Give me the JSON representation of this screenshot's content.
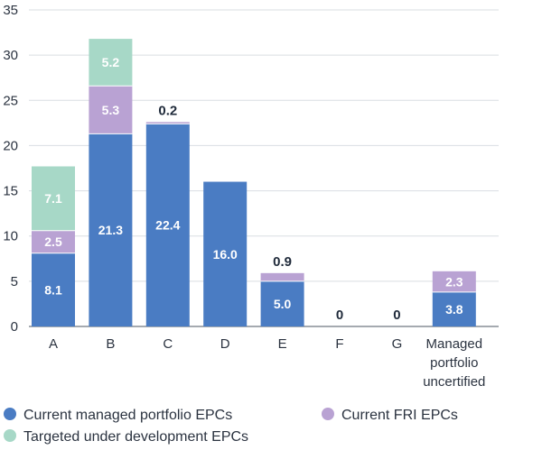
{
  "chart_data": {
    "type": "bar",
    "stacked": true,
    "categories": [
      "A",
      "B",
      "C",
      "D",
      "E",
      "F",
      "G",
      "Managed portfolio uncertified"
    ],
    "category_lines": [
      [
        "A"
      ],
      [
        "B"
      ],
      [
        "C"
      ],
      [
        "D"
      ],
      [
        "E"
      ],
      [
        "F"
      ],
      [
        "G"
      ],
      [
        "Managed",
        "portfolio",
        "uncertified"
      ]
    ],
    "series": [
      {
        "name": "Current managed portfolio EPCs",
        "color": "#4a7cc3",
        "values": [
          8.1,
          21.3,
          22.4,
          16.0,
          5.0,
          0,
          0,
          3.8
        ]
      },
      {
        "name": "Current FRI EPCs",
        "color": "#b9a2d3",
        "values": [
          2.5,
          5.3,
          0.2,
          0,
          0.9,
          0,
          0,
          2.3
        ]
      },
      {
        "name": "Targeted under development EPCs",
        "color": "#a7d8c7",
        "values": [
          7.1,
          5.2,
          0,
          0,
          0,
          0,
          0,
          0
        ]
      }
    ],
    "data_labels": [
      [
        {
          "text": "8.1",
          "pos": "inside"
        },
        {
          "text": "2.5",
          "pos": "inside"
        },
        {
          "text": "7.1",
          "pos": "inside"
        }
      ],
      [
        {
          "text": "21.3",
          "pos": "inside"
        },
        {
          "text": "5.3",
          "pos": "inside"
        },
        {
          "text": "5.2",
          "pos": "inside"
        }
      ],
      [
        {
          "text": "22.4",
          "pos": "inside"
        },
        {
          "text": "0.2",
          "pos": "above"
        },
        null
      ],
      [
        {
          "text": "16.0",
          "pos": "inside"
        },
        null,
        null
      ],
      [
        {
          "text": "5.0",
          "pos": "inside"
        },
        {
          "text": "0.9",
          "pos": "above"
        },
        null
      ],
      [
        {
          "text": "0",
          "pos": "above"
        },
        null,
        null
      ],
      [
        {
          "text": "0",
          "pos": "above"
        },
        null,
        null
      ],
      [
        {
          "text": "3.8",
          "pos": "inside"
        },
        {
          "text": "2.3",
          "pos": "inside"
        },
        null
      ]
    ],
    "ylim": [
      0,
      35
    ],
    "yticks": [
      0,
      5,
      10,
      15,
      20,
      25,
      30,
      35
    ],
    "grid": true,
    "legend_position": "bottom",
    "title": "",
    "xlabel": "",
    "ylabel": ""
  }
}
